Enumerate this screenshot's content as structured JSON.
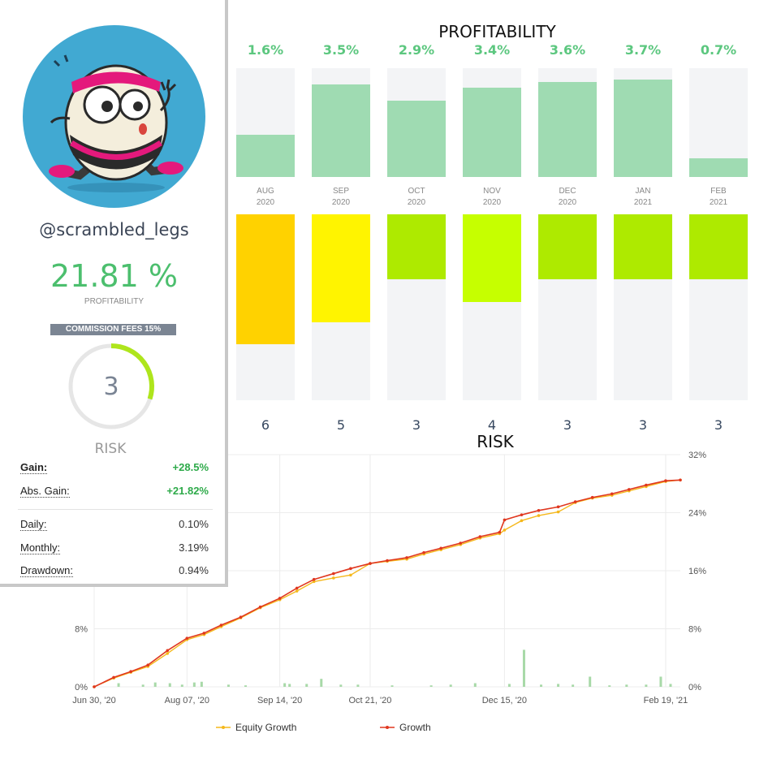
{
  "profile": {
    "username": "@scrambled_legs",
    "profitability": "21.81 %",
    "profitability_label": "PROFITABILITY",
    "commission": "COMMISSION FEES 15%",
    "risk_value": "3",
    "risk_label": "RISK",
    "gauge_fraction": 0.3
  },
  "stats": [
    {
      "label": "Gain:",
      "value": "+28.5%",
      "tone": "pos"
    },
    {
      "label": "Abs. Gain:",
      "value": "+21.82%",
      "tone": "pos"
    },
    {
      "label": "Daily:",
      "value": "0.10%",
      "tone": "neu"
    },
    {
      "label": "Monthly:",
      "value": "3.19%",
      "tone": "neu"
    },
    {
      "label": "Drawdown:",
      "value": "0.94%",
      "tone": "neu"
    }
  ],
  "profitability_title": "PROFITABILITY",
  "risk_title": "RISK",
  "months": [
    {
      "month": "AUG",
      "year": "2020",
      "pct": "1.6%",
      "pct_value": 1.6,
      "risk": "6",
      "risk_fill": 0.7,
      "risk_color": "#ffd200"
    },
    {
      "month": "SEP",
      "year": "2020",
      "pct": "3.5%",
      "pct_value": 3.5,
      "risk": "5",
      "risk_fill": 0.58,
      "risk_color": "#fff400"
    },
    {
      "month": "OCT",
      "year": "2020",
      "pct": "2.9%",
      "pct_value": 2.9,
      "risk": "3",
      "risk_fill": 0.35,
      "risk_color": "#aeea00"
    },
    {
      "month": "NOV",
      "year": "2020",
      "pct": "3.4%",
      "pct_value": 3.4,
      "risk": "4",
      "risk_fill": 0.47,
      "risk_color": "#c6ff00"
    },
    {
      "month": "DEC",
      "year": "2020",
      "pct": "3.6%",
      "pct_value": 3.6,
      "risk": "3",
      "risk_fill": 0.35,
      "risk_color": "#aeea00"
    },
    {
      "month": "JAN",
      "year": "2021",
      "pct": "3.7%",
      "pct_value": 3.7,
      "risk": "3",
      "risk_fill": 0.35,
      "risk_color": "#aeea00"
    },
    {
      "month": "FEB",
      "year": "2021",
      "pct": "0.7%",
      "pct_value": 0.7,
      "risk": "3",
      "risk_fill": 0.35,
      "risk_color": "#aeea00"
    }
  ],
  "colors": {
    "profit_fill": "#9fdbb2",
    "profit_text": "#5cc77f",
    "equity": "#f5b81c",
    "growth": "#e0371f",
    "volume_bar": "#a8d9a8",
    "gauge_arc": "#aee51c"
  },
  "chart_data": {
    "type": "line",
    "x_tick_labels": [
      "Jun 30, '20",
      "Aug 07, '20",
      "Sep 14, '20",
      "Oct 21, '20",
      "Dec 15, '20",
      "Feb 19, '21"
    ],
    "x_tick_days": [
      0,
      38,
      76,
      113,
      168,
      234
    ],
    "x_range_days": [
      0,
      240
    ],
    "y_left_ticks": [
      "0%",
      "8%"
    ],
    "y_right_ticks": [
      "0%",
      "8%",
      "16%",
      "24%",
      "32%"
    ],
    "ylim": [
      0,
      32
    ],
    "grid": true,
    "legend_position": "bottom",
    "series": [
      {
        "name": "Equity Growth",
        "days": [
          0,
          8,
          15,
          22,
          30,
          38,
          45,
          52,
          60,
          68,
          76,
          83,
          90,
          98,
          105,
          113,
          120,
          128,
          135,
          142,
          150,
          158,
          166,
          168,
          175,
          182,
          190,
          197,
          204,
          212,
          219,
          226,
          234,
          240
        ],
        "values": [
          0,
          1.2,
          2.0,
          2.8,
          4.6,
          6.5,
          7.2,
          8.3,
          9.5,
          10.9,
          12.0,
          13.2,
          14.5,
          15.0,
          15.4,
          17.0,
          17.3,
          17.6,
          18.3,
          18.9,
          19.6,
          20.5,
          21.1,
          21.6,
          22.9,
          23.6,
          24.1,
          25.4,
          26.0,
          26.4,
          27.0,
          27.6,
          28.3,
          28.5
        ]
      },
      {
        "name": "Growth",
        "days": [
          0,
          8,
          15,
          22,
          30,
          38,
          45,
          52,
          60,
          68,
          76,
          83,
          90,
          98,
          105,
          113,
          120,
          128,
          135,
          142,
          150,
          158,
          166,
          168,
          175,
          182,
          190,
          197,
          204,
          212,
          219,
          226,
          234,
          240
        ],
        "values": [
          0,
          1.3,
          2.1,
          3.0,
          5.0,
          6.7,
          7.4,
          8.5,
          9.6,
          11.0,
          12.2,
          13.6,
          14.8,
          15.6,
          16.3,
          17.0,
          17.4,
          17.8,
          18.5,
          19.1,
          19.8,
          20.7,
          21.3,
          23.0,
          23.7,
          24.3,
          24.8,
          25.5,
          26.1,
          26.6,
          27.2,
          27.8,
          28.4,
          28.5
        ]
      }
    ],
    "volume_days": [
      10,
      20,
      25,
      31,
      36,
      41,
      44,
      55,
      62,
      78,
      80,
      87,
      93,
      101,
      108,
      122,
      138,
      146,
      156,
      170,
      176,
      183,
      190,
      196,
      203,
      211,
      218,
      226,
      232,
      236
    ],
    "volume_values": [
      0.5,
      0.3,
      0.6,
      0.5,
      0.3,
      0.6,
      0.7,
      0.3,
      0.2,
      0.5,
      0.4,
      0.4,
      1.1,
      0.3,
      0.3,
      0.2,
      0.2,
      0.3,
      0.5,
      0.4,
      5.1,
      0.3,
      0.4,
      0.3,
      1.4,
      0.2,
      0.3,
      0.3,
      1.4,
      0.4
    ]
  },
  "legend": {
    "equity": "Equity Growth",
    "growth": "Growth"
  }
}
